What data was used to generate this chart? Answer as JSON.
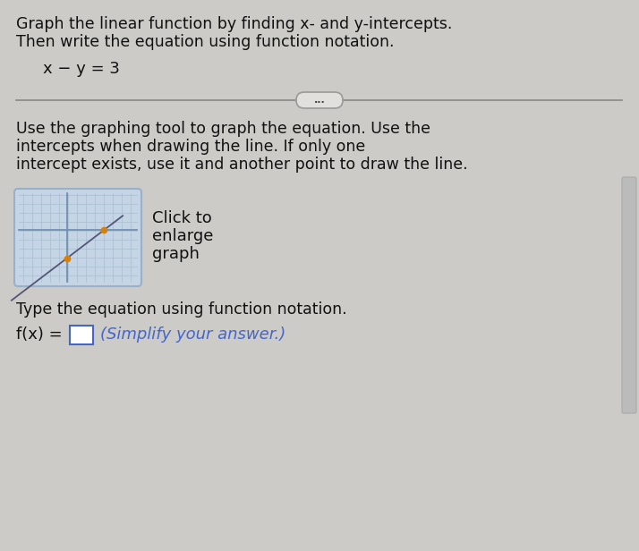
{
  "bg_color": "#cccbc7",
  "title_text1": "Graph the linear function by finding x- and y-intercepts.",
  "title_text2": "Then write the equation using function notation.",
  "equation": "x − y = 3",
  "divider_text": "...",
  "instruction_text1": "Use the graphing tool to graph the equation. Use the",
  "instruction_text2": "intercepts when drawing the line. If only one",
  "instruction_text3": "intercept exists, use it and another point to draw the line.",
  "graph_label1": "Click to",
  "graph_label2": "enlarge",
  "graph_label3": "graph",
  "type_text": "Type the equation using function notation.",
  "fx_text": "f(x) =",
  "simplify_text": "(Simplify your answer.)",
  "graph_bg": "#c5d5e5",
  "graph_border_color": "#9ab0c8",
  "graph_grid_color": "#a8bdd0",
  "graph_axis_color": "#7090b0",
  "graph_point_color": "#d4820a",
  "graph_line_color": "#555577",
  "title_fontsize": 12.5,
  "eq_fontsize": 13,
  "instruction_fontsize": 12.5,
  "label_fontsize": 13,
  "fx_fontsize": 13,
  "divider_color": "#888888",
  "text_color": "#111111",
  "blue_text_color": "#4466cc"
}
